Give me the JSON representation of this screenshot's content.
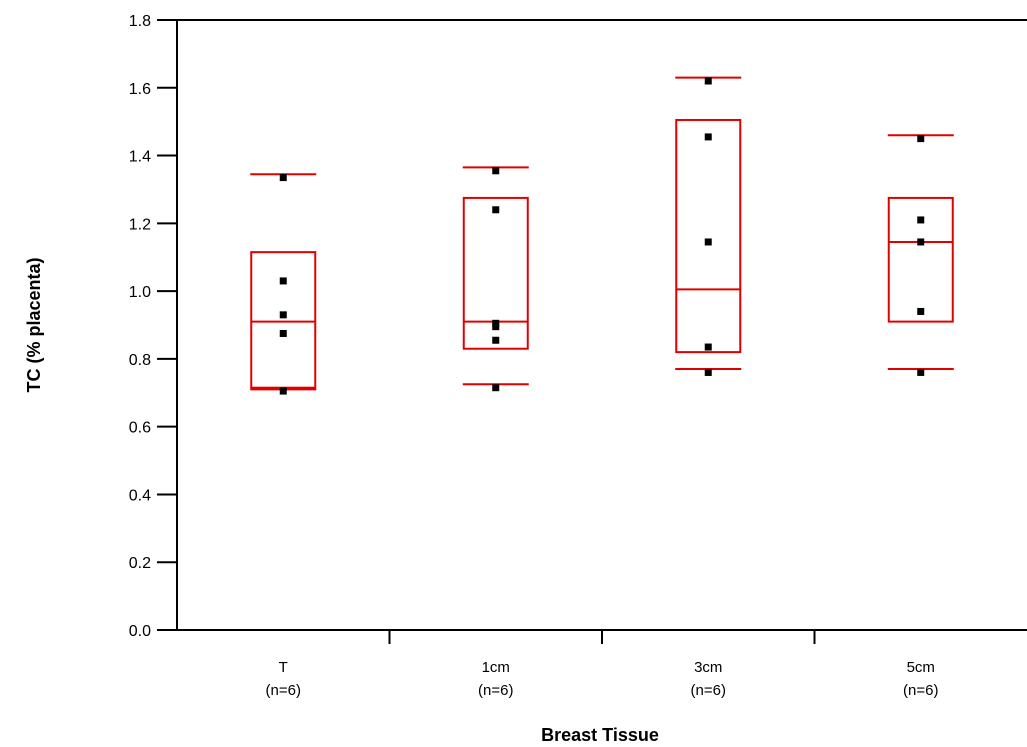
{
  "chart_data": {
    "type": "box",
    "title": "",
    "xlabel": "Breast Tissue",
    "ylabel": "TC (% placenta)",
    "ylim": [
      0,
      1.8
    ],
    "yticks": [
      "0.0",
      "0.2",
      "0.4",
      "0.6",
      "0.8",
      "1.0",
      "1.2",
      "1.4",
      "1.6",
      "1.8"
    ],
    "grid": false,
    "box_color": "#e00000",
    "point_color": "#000000",
    "categories": [
      {
        "label": "T",
        "n_label": "(n=6)",
        "whisker_low": 0.71,
        "q1": 0.715,
        "median": 0.91,
        "q3": 1.115,
        "whisker_high": 1.345,
        "points": [
          0.705,
          0.875,
          0.93,
          1.03,
          1.335
        ]
      },
      {
        "label": "1cm",
        "n_label": "(n=6)",
        "whisker_low": 0.725,
        "q1": 0.83,
        "median": 0.91,
        "q3": 1.275,
        "whisker_high": 1.365,
        "points": [
          0.715,
          0.855,
          0.895,
          0.905,
          1.24,
          1.355
        ]
      },
      {
        "label": "3cm",
        "n_label": "(n=6)",
        "whisker_low": 0.77,
        "q1": 0.82,
        "median": 1.005,
        "q3": 1.505,
        "whisker_high": 1.63,
        "points": [
          0.76,
          0.835,
          1.145,
          1.455,
          1.62
        ]
      },
      {
        "label": "5cm",
        "n_label": "(n=6)",
        "whisker_low": 0.77,
        "q1": 0.91,
        "median": 1.145,
        "q3": 1.275,
        "whisker_high": 1.46,
        "points": [
          0.76,
          0.94,
          1.145,
          1.21,
          1.45
        ]
      }
    ]
  }
}
